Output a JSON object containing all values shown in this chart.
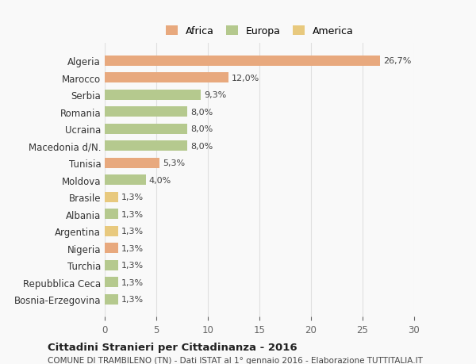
{
  "categories": [
    "Bosnia-Erzegovina",
    "Repubblica Ceca",
    "Turchia",
    "Nigeria",
    "Argentina",
    "Albania",
    "Brasile",
    "Moldova",
    "Tunisia",
    "Macedonia d/N.",
    "Ucraina",
    "Romania",
    "Serbia",
    "Marocco",
    "Algeria"
  ],
  "values": [
    1.3,
    1.3,
    1.3,
    1.3,
    1.3,
    1.3,
    1.3,
    4.0,
    5.3,
    8.0,
    8.0,
    8.0,
    9.3,
    12.0,
    26.7
  ],
  "colors": [
    "#b5c98e",
    "#b5c98e",
    "#b5c98e",
    "#e8a97e",
    "#e8c97e",
    "#b5c98e",
    "#e8c97e",
    "#b5c98e",
    "#e8a97e",
    "#b5c98e",
    "#b5c98e",
    "#b5c98e",
    "#b5c98e",
    "#e8a97e",
    "#e8a97e"
  ],
  "labels": [
    "1,3%",
    "1,3%",
    "1,3%",
    "1,3%",
    "1,3%",
    "1,3%",
    "1,3%",
    "4,0%",
    "5,3%",
    "8,0%",
    "8,0%",
    "8,0%",
    "9,3%",
    "12,0%",
    "26,7%"
  ],
  "legend": [
    {
      "label": "Africa",
      "color": "#e8a97e"
    },
    {
      "label": "Europa",
      "color": "#b5c98e"
    },
    {
      "label": "America",
      "color": "#e8c97e"
    }
  ],
  "title": "Cittadini Stranieri per Cittadinanza - 2016",
  "subtitle": "COMUNE DI TRAMBILENO (TN) - Dati ISTAT al 1° gennaio 2016 - Elaborazione TUTTITALIA.IT",
  "xlim": [
    0,
    30
  ],
  "xticks": [
    0,
    5,
    10,
    15,
    20,
    25,
    30
  ],
  "background_color": "#f9f9f9",
  "grid_color": "#e0e0e0",
  "bar_height": 0.6
}
